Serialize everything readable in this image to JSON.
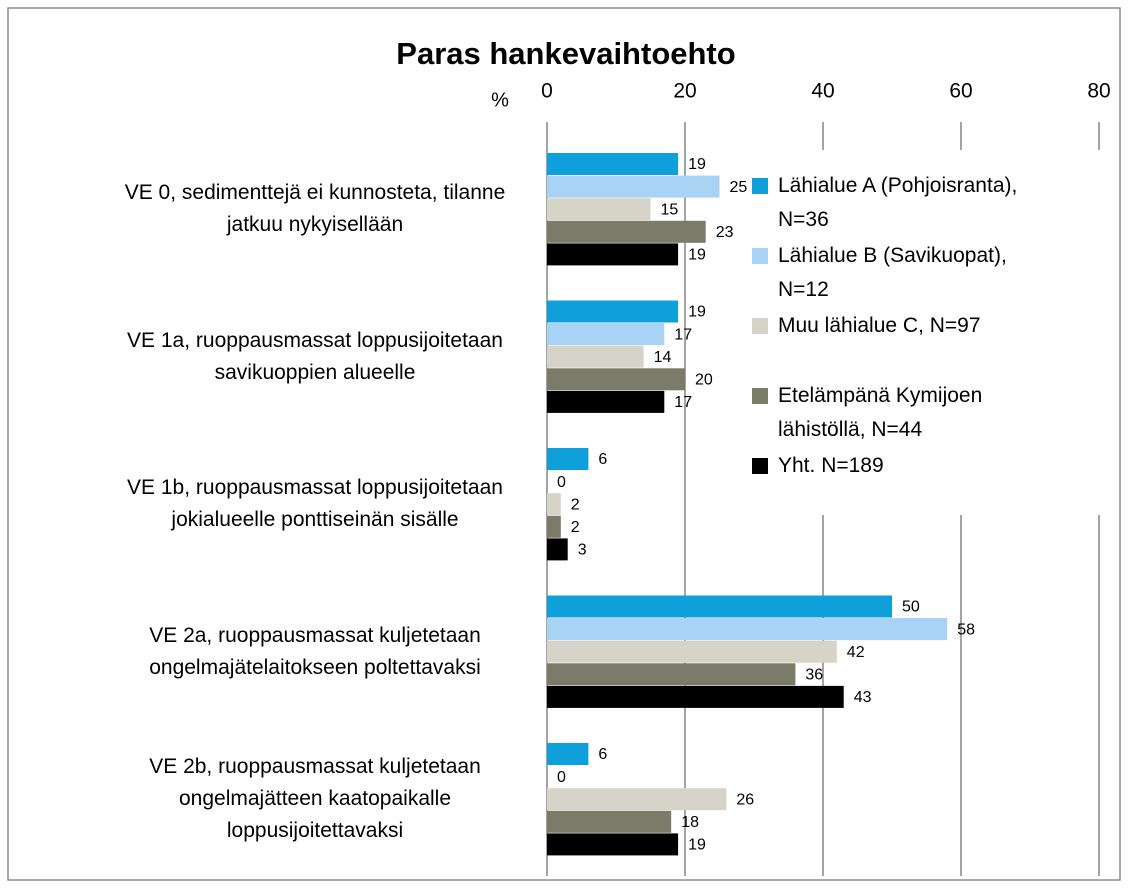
{
  "chart_data": {
    "type": "hbar",
    "title": "Paras hankevaihtoehto",
    "xlabel": "%",
    "categories": [
      "VE 0, sedimenttejä ei kunnosteta, tilanne\njatkuu nykyisellään",
      "VE 1a, ruoppausmassat loppusijoitetaan\nsavikuoppien alueelle",
      "VE 1b, ruoppausmassat loppusijoitetaan\njokialueelle ponttiseinän sisälle",
      "VE 2a, ruoppausmassat kuljetetaan\nongelmajätelaitokseen poltettavaksi",
      "VE 2b, ruoppausmassat kuljetetaan\nongelmajätteen kaatopaikalle\nloppusijoitettavaksi"
    ],
    "series": [
      {
        "name": "Lähialue A (Pohjoisranta),\nN=36",
        "color": "#0f9fdb",
        "values": [
          19,
          19,
          6,
          50,
          6
        ]
      },
      {
        "name": "Lähialue B (Savikuopat),\nN=12",
        "color": "#a9d3f5",
        "values": [
          25,
          17,
          0,
          58,
          0
        ]
      },
      {
        "name": "Muu lähialue C, N=97",
        "color": "#d6d3c8",
        "values": [
          15,
          14,
          2,
          42,
          26
        ]
      },
      {
        "name": "Etelämpänä Kymijoen\nlähistöllä, N=44",
        "color": "#7b7b69",
        "values": [
          23,
          20,
          2,
          36,
          18
        ]
      },
      {
        "name": "Yht. N=189",
        "color": "#000000",
        "values": [
          19,
          17,
          3,
          43,
          19
        ]
      }
    ],
    "xlim": [
      0,
      80
    ],
    "xticks": [
      0,
      20,
      40,
      60,
      80
    ],
    "grid": true,
    "legend": "right"
  }
}
